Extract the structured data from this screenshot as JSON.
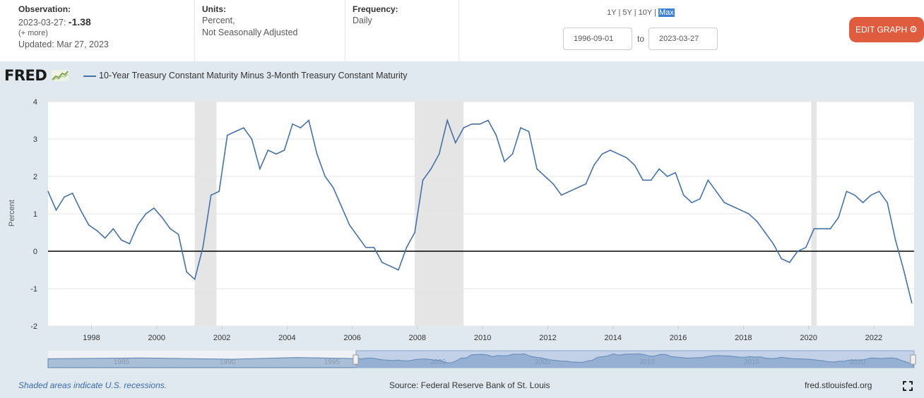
{
  "header": {
    "observation_label": "Observation:",
    "observation_date": "2023-03-27:",
    "observation_value": "-1.38",
    "more_label": "(+ more)",
    "updated": "Updated: Mar 27, 2023",
    "units_label": "Units:",
    "units_line1": "Percent,",
    "units_line2": "Not Seasonally Adjusted",
    "frequency_label": "Frequency:",
    "frequency_value": "Daily",
    "range_links": [
      "1Y",
      "5Y",
      "10Y",
      "Max"
    ],
    "range_selected": "Max",
    "start_date": "1996-09-01",
    "to_label": "to",
    "end_date": "2023-03-27",
    "edit_button": "EDIT GRAPH"
  },
  "brand": {
    "logo_text": "FRED"
  },
  "footer": {
    "recession_note": "Shaded areas indicate U.S. recessions.",
    "source": "Source: Federal Reserve Bank of St. Louis",
    "site": "fred.stlouisfed.org"
  },
  "colors": {
    "series": "#4572a7",
    "recession": "#e5e5e5",
    "accent": "#e05c3e"
  },
  "chart_data": {
    "type": "line",
    "series": [
      {
        "name": "10-Year Treasury Constant Maturity Minus 3-Month Treasury Constant Maturity",
        "x": [
          "1996-09",
          "1996-12",
          "1997-03",
          "1997-06",
          "1997-09",
          "1997-12",
          "1998-03",
          "1998-06",
          "1998-09",
          "1998-12",
          "1999-03",
          "1999-06",
          "1999-09",
          "1999-12",
          "2000-03",
          "2000-06",
          "2000-09",
          "2000-12",
          "2001-03",
          "2001-06",
          "2001-09",
          "2001-12",
          "2002-03",
          "2002-06",
          "2002-09",
          "2002-12",
          "2003-03",
          "2003-06",
          "2003-09",
          "2003-12",
          "2004-03",
          "2004-06",
          "2004-09",
          "2004-12",
          "2005-03",
          "2005-06",
          "2005-09",
          "2005-12",
          "2006-03",
          "2006-06",
          "2006-09",
          "2006-12",
          "2007-03",
          "2007-06",
          "2007-09",
          "2007-12",
          "2008-03",
          "2008-06",
          "2008-09",
          "2008-12",
          "2009-03",
          "2009-06",
          "2009-09",
          "2009-12",
          "2010-03",
          "2010-06",
          "2010-09",
          "2010-12",
          "2011-03",
          "2011-06",
          "2011-09",
          "2011-12",
          "2012-03",
          "2012-06",
          "2012-09",
          "2012-12",
          "2013-03",
          "2013-06",
          "2013-09",
          "2013-12",
          "2014-03",
          "2014-06",
          "2014-09",
          "2014-12",
          "2015-03",
          "2015-06",
          "2015-09",
          "2015-12",
          "2016-03",
          "2016-06",
          "2016-09",
          "2016-12",
          "2017-03",
          "2017-06",
          "2017-09",
          "2017-12",
          "2018-03",
          "2018-06",
          "2018-09",
          "2018-12",
          "2019-03",
          "2019-06",
          "2019-09",
          "2019-12",
          "2020-03",
          "2020-06",
          "2020-09",
          "2020-12",
          "2021-03",
          "2021-06",
          "2021-09",
          "2021-12",
          "2022-03",
          "2022-06",
          "2022-09",
          "2022-12",
          "2023-03"
        ],
        "values": [
          1.6,
          1.1,
          1.45,
          1.55,
          1.1,
          0.7,
          0.55,
          0.35,
          0.6,
          0.3,
          0.2,
          0.7,
          1.0,
          1.15,
          0.9,
          0.6,
          0.45,
          -0.55,
          -0.75,
          0.1,
          1.5,
          1.6,
          3.1,
          3.2,
          3.3,
          3.0,
          2.2,
          2.7,
          2.6,
          2.7,
          3.4,
          3.3,
          3.5,
          2.6,
          2.0,
          1.7,
          1.2,
          0.7,
          0.4,
          0.1,
          0.1,
          -0.3,
          -0.4,
          -0.5,
          0.1,
          0.5,
          1.9,
          2.2,
          2.6,
          3.5,
          2.9,
          3.3,
          3.4,
          3.4,
          3.5,
          3.1,
          2.4,
          2.6,
          3.3,
          3.2,
          2.2,
          2.0,
          1.8,
          1.5,
          1.6,
          1.7,
          1.8,
          2.3,
          2.6,
          2.7,
          2.6,
          2.5,
          2.3,
          1.9,
          1.9,
          2.2,
          2.0,
          2.1,
          1.5,
          1.3,
          1.4,
          1.9,
          1.6,
          1.3,
          1.2,
          1.1,
          1.0,
          0.8,
          0.5,
          0.2,
          -0.2,
          -0.3,
          0.0,
          0.1,
          0.6,
          0.6,
          0.6,
          0.9,
          1.6,
          1.5,
          1.3,
          1.5,
          1.6,
          1.3,
          0.3,
          -0.5,
          -1.38
        ]
      }
    ],
    "recessions": [
      [
        "2001-03",
        "2001-11"
      ],
      [
        "2007-12",
        "2009-06"
      ],
      [
        "2020-02",
        "2020-04"
      ]
    ],
    "x_ticks": [
      "1998",
      "2000",
      "2002",
      "2004",
      "2006",
      "2008",
      "2010",
      "2012",
      "2014",
      "2016",
      "2018",
      "2020",
      "2022"
    ],
    "y_ticks": [
      4,
      3,
      2,
      1,
      0,
      -1,
      -2
    ],
    "ylim": [
      -2,
      4
    ],
    "xlim": [
      "1996-09-01",
      "2023-03-27"
    ],
    "ylabel": "Percent",
    "legend_position": "top-left",
    "grid": true,
    "navigator_labels": [
      "1985",
      "1990",
      "1995",
      "2000",
      "2005",
      "2010",
      "2015",
      "2020"
    ]
  }
}
